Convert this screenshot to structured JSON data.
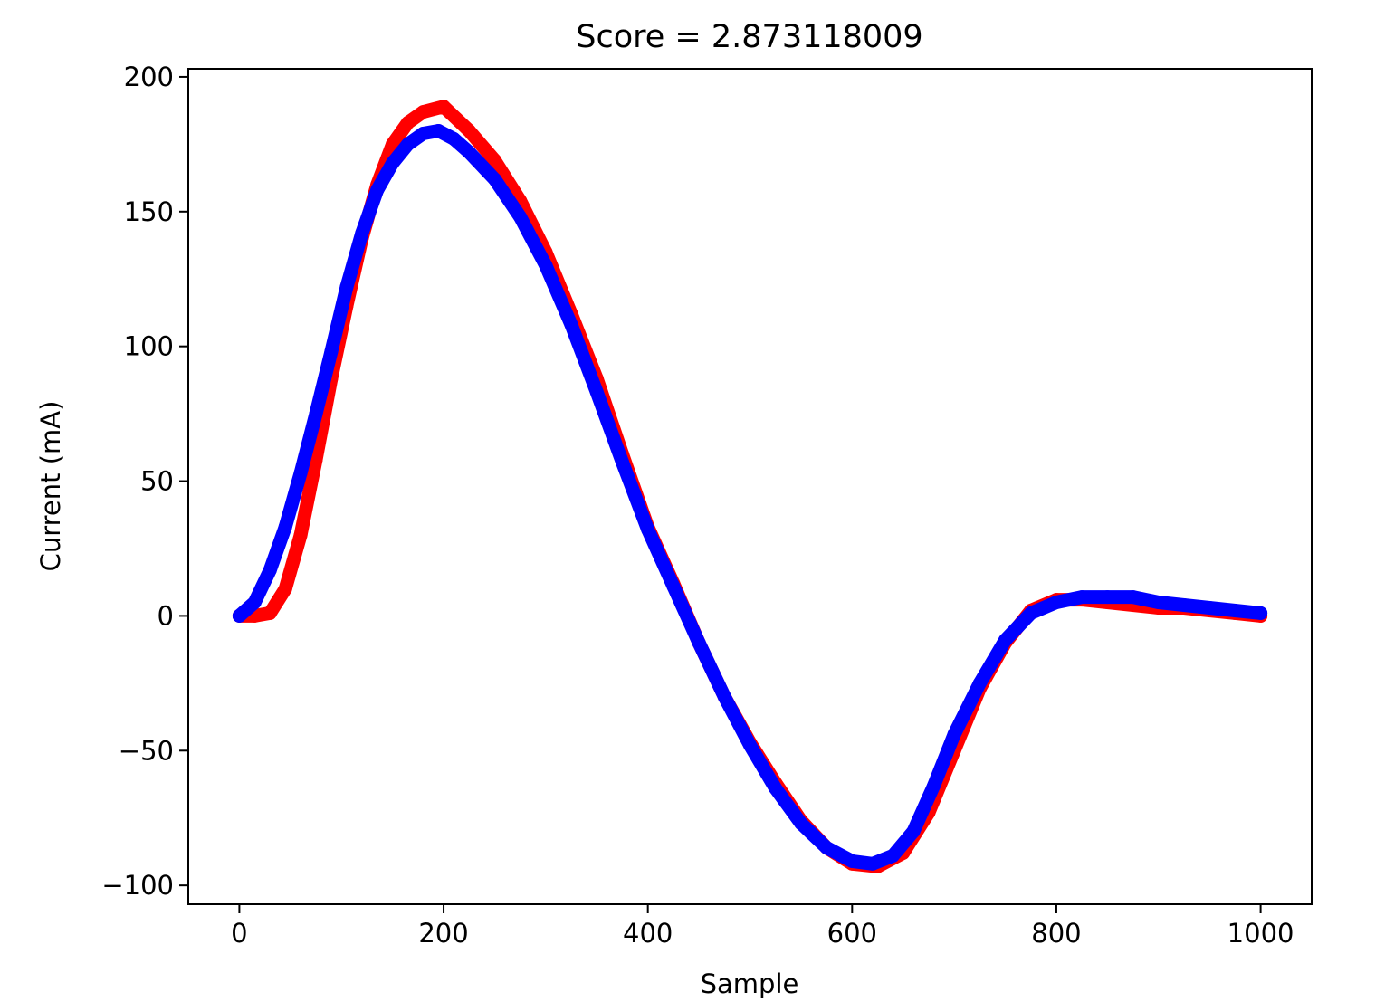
{
  "chart_data": {
    "type": "scatter",
    "title": "Score = 2.873118009",
    "xlabel": "Sample",
    "ylabel": "Current (mA)",
    "xlim": [
      -50,
      1050
    ],
    "ylim": [
      -107,
      203
    ],
    "xticks": [
      0,
      200,
      400,
      600,
      800,
      1000
    ],
    "xtick_labels": [
      "0",
      "200",
      "400",
      "600",
      "800",
      "1000"
    ],
    "yticks": [
      -100,
      -50,
      0,
      50,
      100,
      150,
      200
    ],
    "ytick_labels": [
      "−100",
      "−50",
      "0",
      "50",
      "100",
      "150",
      "200"
    ],
    "grid": false,
    "legend": "none",
    "series": [
      {
        "color": "#ff0000",
        "marker": "dense-points",
        "x": [
          0,
          15,
          30,
          45,
          60,
          75,
          90,
          105,
          120,
          135,
          150,
          165,
          180,
          200,
          225,
          250,
          275,
          300,
          325,
          350,
          375,
          400,
          425,
          450,
          475,
          500,
          525,
          550,
          575,
          600,
          625,
          650,
          675,
          700,
          725,
          750,
          775,
          800,
          825,
          850,
          875,
          900,
          925,
          950,
          975,
          1000
        ],
        "y": [
          0,
          0,
          1,
          10,
          30,
          58,
          88,
          115,
          140,
          160,
          175,
          183,
          187,
          189,
          180,
          169,
          154,
          135,
          112,
          88,
          60,
          33,
          12,
          -10,
          -30,
          -47,
          -62,
          -76,
          -86,
          -92,
          -93,
          -88,
          -73,
          -50,
          -27,
          -10,
          2,
          6,
          6,
          5,
          4,
          3,
          3,
          2,
          1,
          0
        ]
      },
      {
        "color": "#0000ff",
        "marker": "dense-points",
        "x": [
          0,
          15,
          30,
          45,
          60,
          75,
          90,
          105,
          120,
          135,
          150,
          165,
          180,
          195,
          210,
          225,
          250,
          275,
          300,
          325,
          350,
          375,
          400,
          425,
          450,
          475,
          500,
          525,
          550,
          575,
          600,
          620,
          640,
          660,
          680,
          700,
          725,
          750,
          775,
          800,
          825,
          850,
          875,
          900,
          925,
          950,
          975,
          1000
        ],
        "y": [
          0,
          5,
          17,
          33,
          53,
          75,
          98,
          122,
          142,
          158,
          168,
          175,
          179,
          180,
          177,
          172,
          162,
          148,
          130,
          108,
          83,
          57,
          32,
          11,
          -10,
          -30,
          -48,
          -64,
          -77,
          -86,
          -91,
          -92,
          -89,
          -80,
          -63,
          -44,
          -25,
          -9,
          1,
          5,
          7,
          7,
          7,
          5,
          4,
          3,
          2,
          1
        ]
      }
    ]
  }
}
